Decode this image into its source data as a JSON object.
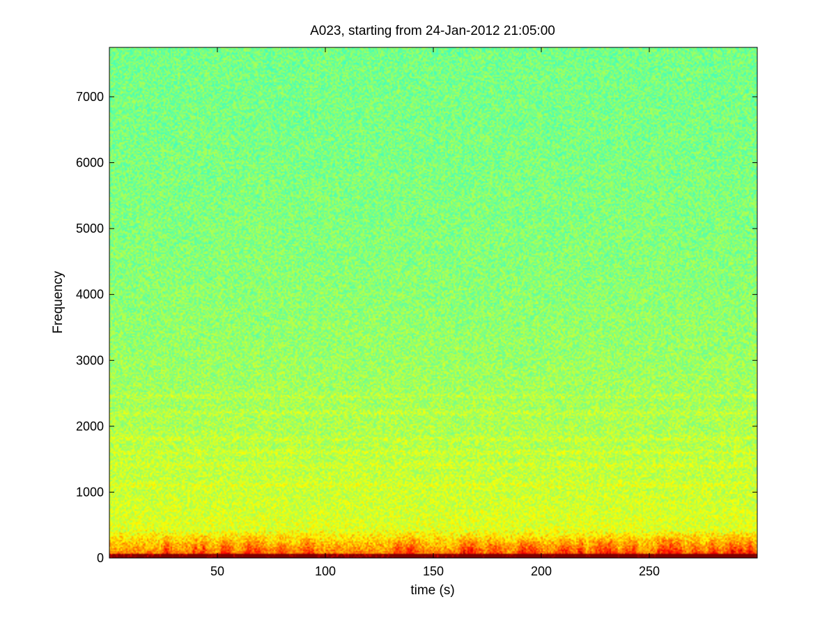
{
  "chart_data": {
    "type": "heatmap",
    "title": "A023, starting from 24-Jan-2012 21:05:00",
    "xlabel": "time (s)",
    "ylabel": "Frequency",
    "xlim": [
      0,
      300
    ],
    "ylim": [
      0,
      7750
    ],
    "xticks": [
      50,
      100,
      150,
      200,
      250
    ],
    "yticks": [
      0,
      1000,
      2000,
      3000,
      4000,
      5000,
      6000,
      7000
    ],
    "grid": false,
    "legend": "none",
    "colormap": "jet",
    "colors": {
      "high_low_freq": "#c81400",
      "mid": "#ffff00",
      "background": "#6cf58a"
    },
    "features": {
      "energy_band_hz": [
        0,
        400
      ],
      "horizontal_bands_hz": [
        1100,
        1400,
        1600,
        1800,
        2200,
        2450
      ]
    }
  }
}
